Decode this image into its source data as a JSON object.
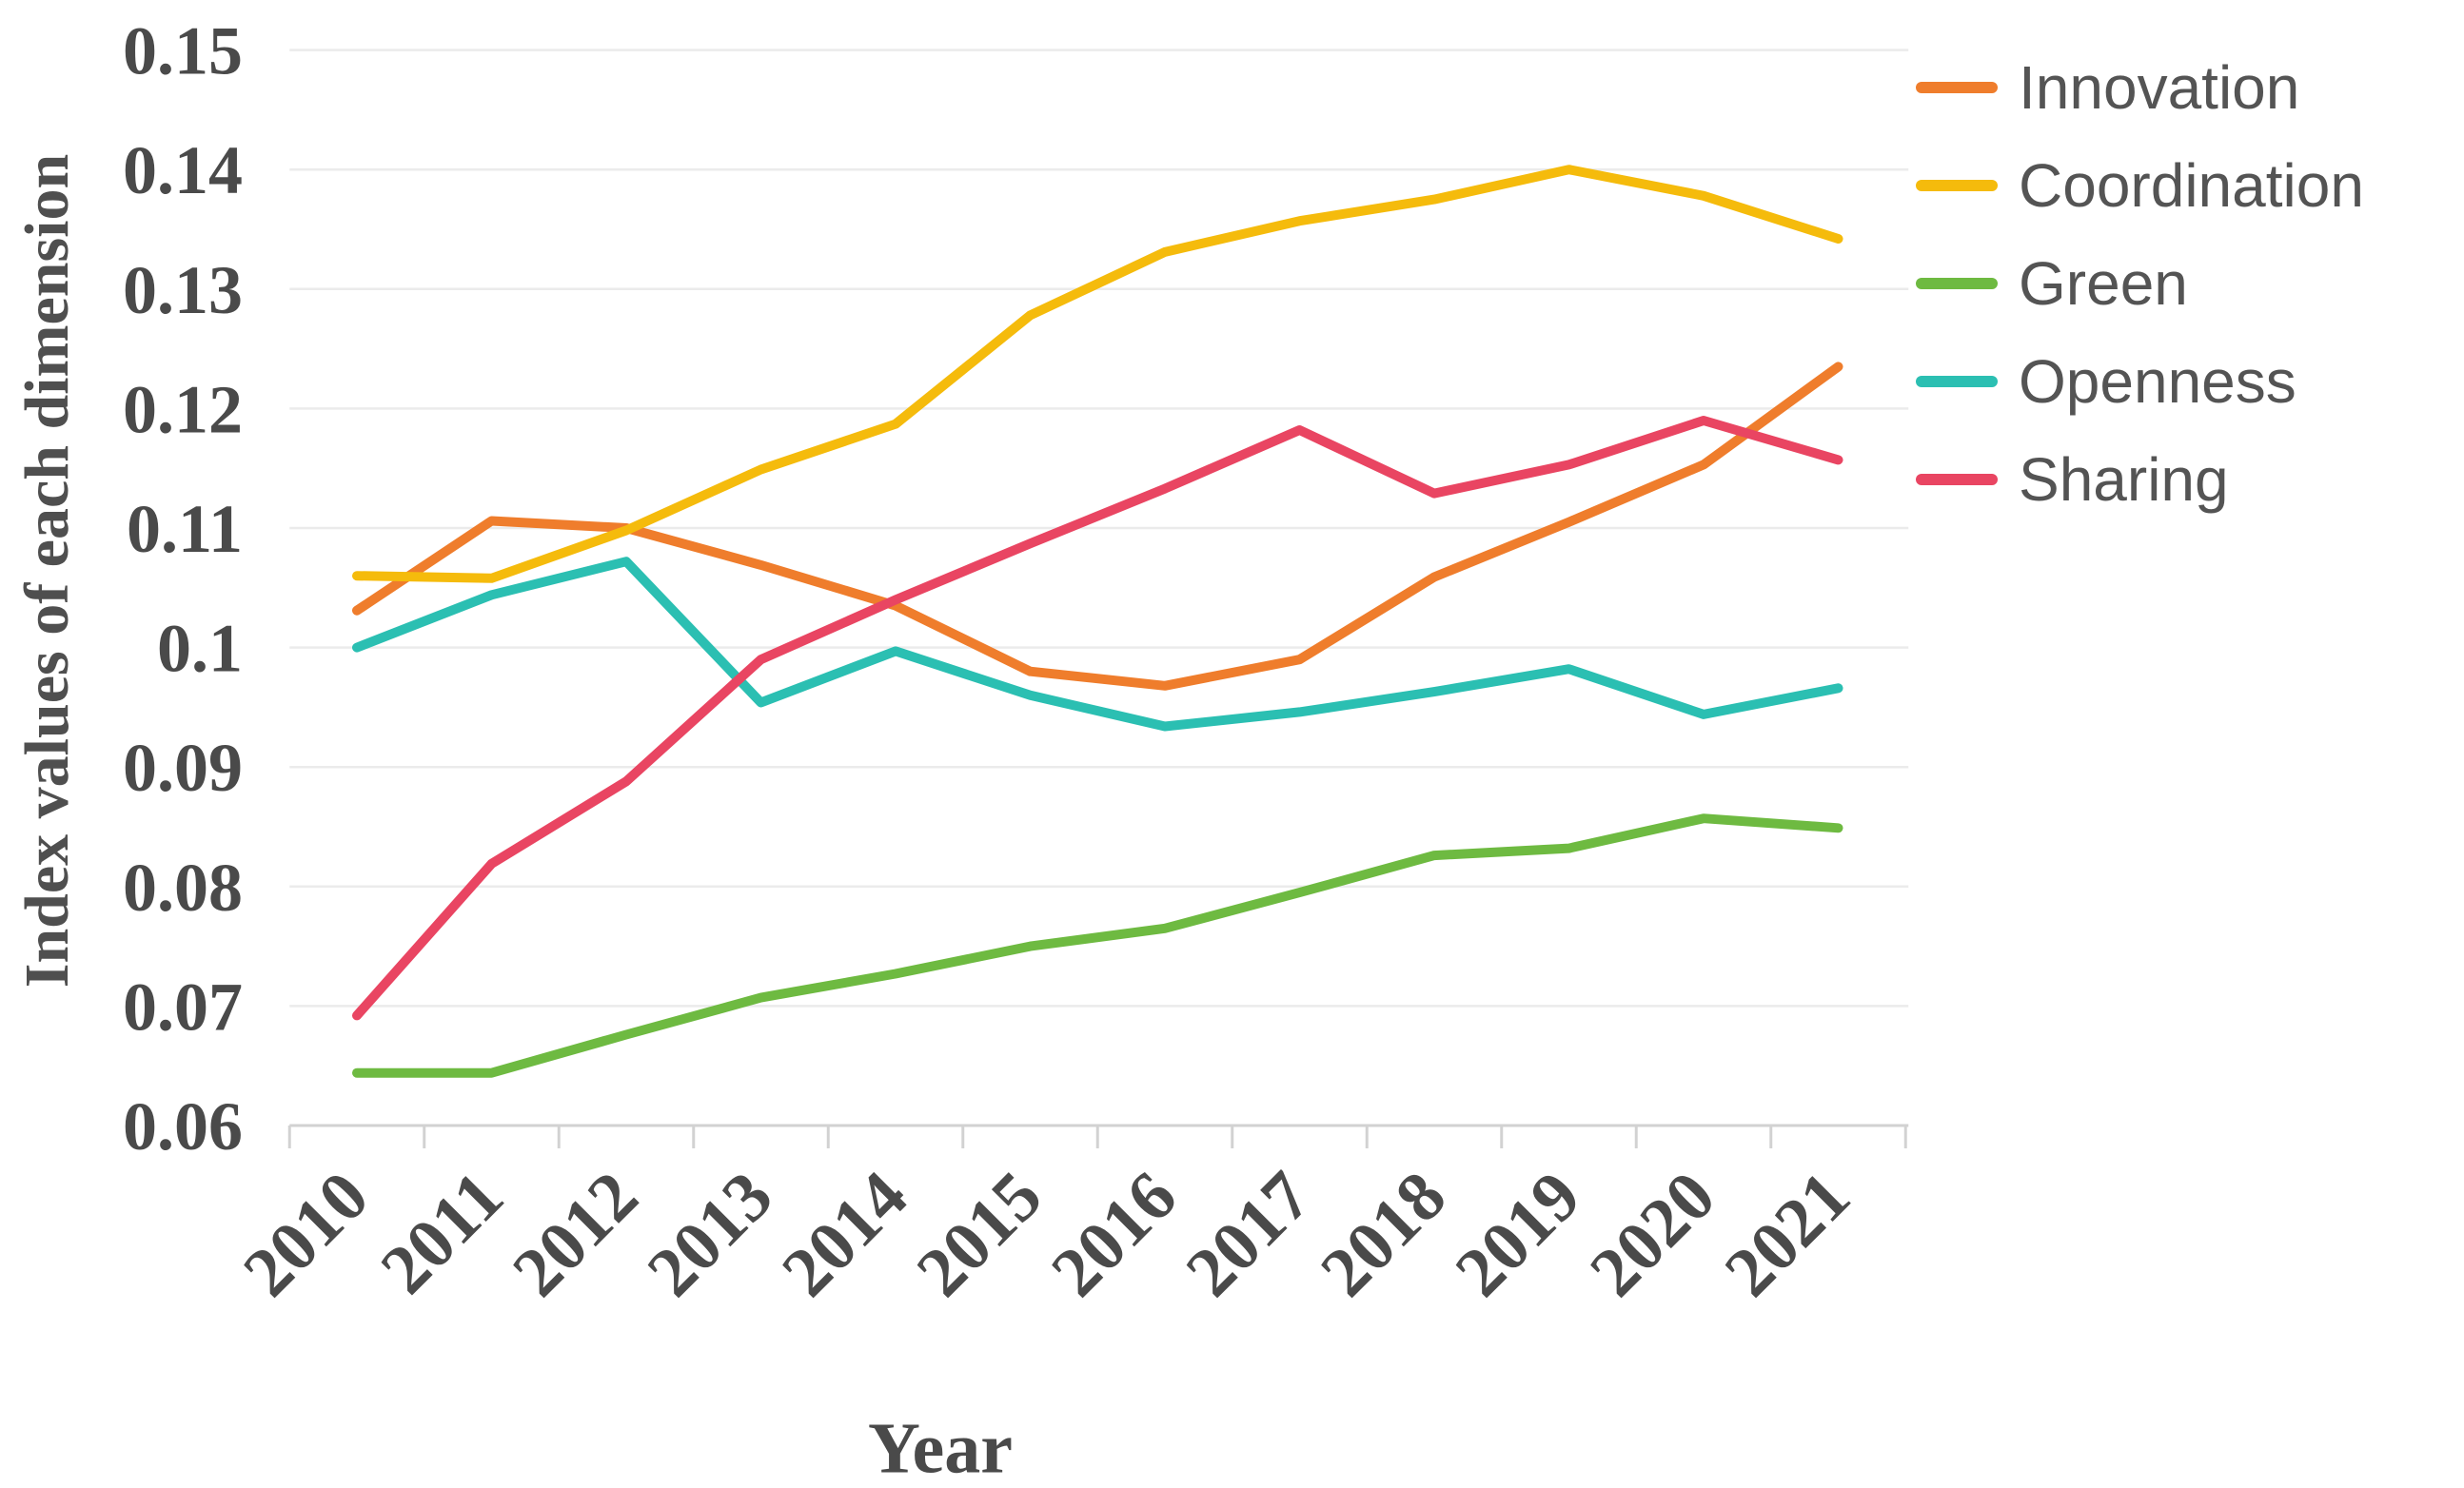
{
  "chart_data": {
    "type": "line",
    "title": "",
    "xlabel": "Year",
    "ylabel": "Index values of each dimension",
    "x": [
      2010,
      2011,
      2012,
      2013,
      2014,
      2015,
      2016,
      2017,
      2018,
      2019,
      2020,
      2021
    ],
    "x_tick_labels": [
      "2010",
      "2011",
      "2012",
      "2013",
      "2014",
      "2015",
      "2016",
      "2017",
      "2018",
      "2019",
      "2020",
      "2021"
    ],
    "ylim": [
      0.06,
      0.15
    ],
    "y_tick_values": [
      0.06,
      0.07,
      0.08,
      0.09,
      0.1,
      0.11,
      0.12,
      0.13,
      0.14,
      0.15
    ],
    "y_tick_labels": [
      "0.06",
      "0.07",
      "0.08",
      "0.09",
      "0.1",
      "0.11",
      "0.12",
      "0.13",
      "0.14",
      "0.15"
    ],
    "grid": true,
    "legend_position": "right-top",
    "series": [
      {
        "name": "Innovation",
        "color": "#EF7D2C",
        "values": [
          0.1031,
          0.1106,
          0.11,
          0.1069,
          0.1035,
          0.098,
          0.0968,
          0.099,
          0.1059,
          0.1105,
          0.1153,
          0.1235
        ]
      },
      {
        "name": "Coordination",
        "color": "#F5BB0C",
        "values": [
          0.106,
          0.1058,
          0.1098,
          0.1149,
          0.1187,
          0.1278,
          0.1331,
          0.1357,
          0.1375,
          0.14,
          0.1378,
          0.1342
        ]
      },
      {
        "name": "Green",
        "color": "#6EBA41",
        "values": [
          0.0644,
          0.0644,
          0.0676,
          0.0707,
          0.0727,
          0.075,
          0.0765,
          0.0795,
          0.0826,
          0.0832,
          0.0857,
          0.0849
        ]
      },
      {
        "name": "Openness",
        "color": "#2BBFB2",
        "values": [
          0.1,
          0.1044,
          0.1072,
          0.0954,
          0.0997,
          0.096,
          0.0934,
          0.0946,
          0.0963,
          0.0982,
          0.0944,
          0.0966
        ]
      },
      {
        "name": "Sharing",
        "color": "#E94562",
        "values": [
          0.0692,
          0.0819,
          0.0888,
          0.099,
          0.104,
          0.1087,
          0.1133,
          0.1182,
          0.1129,
          0.1153,
          0.119,
          0.1157
        ]
      }
    ],
    "colors": {
      "gridline": "#EBEBEB",
      "axis_line": "#D2D2D2",
      "axis_text": "#4A4A4A",
      "legend_text": "#545454"
    }
  }
}
